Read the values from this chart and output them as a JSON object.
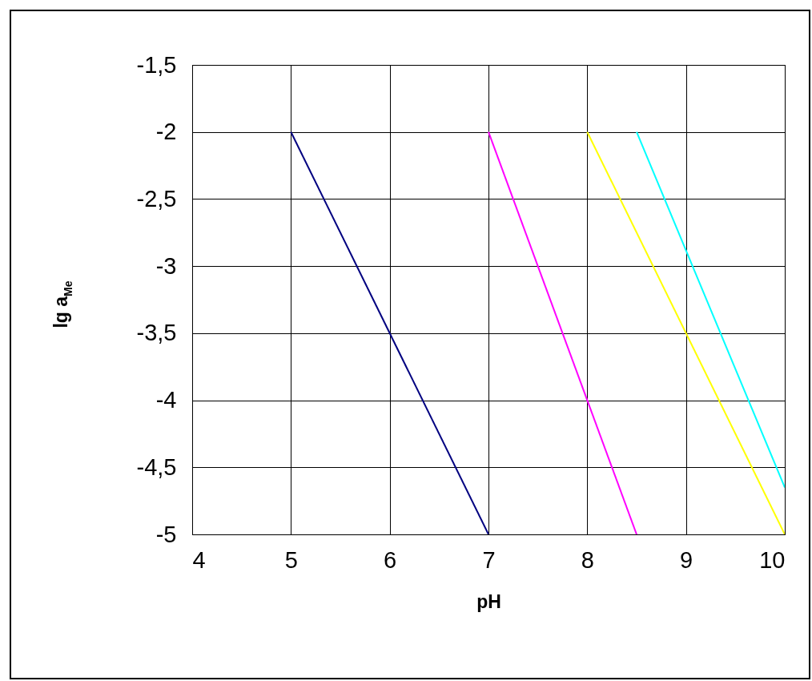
{
  "chart_data": {
    "type": "line",
    "xlabel": "pH",
    "ylabel": "lg a$_{Me}$",
    "xlim": [
      4,
      10
    ],
    "xticks": [
      4,
      5,
      6,
      7,
      8,
      9,
      10
    ],
    "ylim": [
      -5,
      -1.5
    ],
    "yticks": [
      {
        "value": -5,
        "label": "-5"
      },
      {
        "value": -4.5,
        "label": "-4,5"
      },
      {
        "value": -4,
        "label": "-4"
      },
      {
        "value": -3.5,
        "label": "-3,5"
      },
      {
        "value": -3,
        "label": "-3"
      },
      {
        "value": -2.5,
        "label": "-2,5"
      },
      {
        "value": -2,
        "label": "-2"
      },
      {
        "value": -1.5,
        "label": "-1,5"
      }
    ],
    "grid": true,
    "legend": false,
    "marker": "none",
    "series": [
      {
        "color": "#000080",
        "x": [
          5,
          7
        ],
        "values": [
          -2,
          -5
        ]
      },
      {
        "color": "#ff00ff",
        "x": [
          7,
          8.5
        ],
        "values": [
          -2,
          -5
        ]
      },
      {
        "color": "#ffff00",
        "x": [
          8,
          10
        ],
        "values": [
          -2,
          -5
        ]
      },
      {
        "color": "#00ffff",
        "x": [
          8.5,
          10
        ],
        "values": [
          -2,
          -4.65
        ]
      }
    ]
  }
}
